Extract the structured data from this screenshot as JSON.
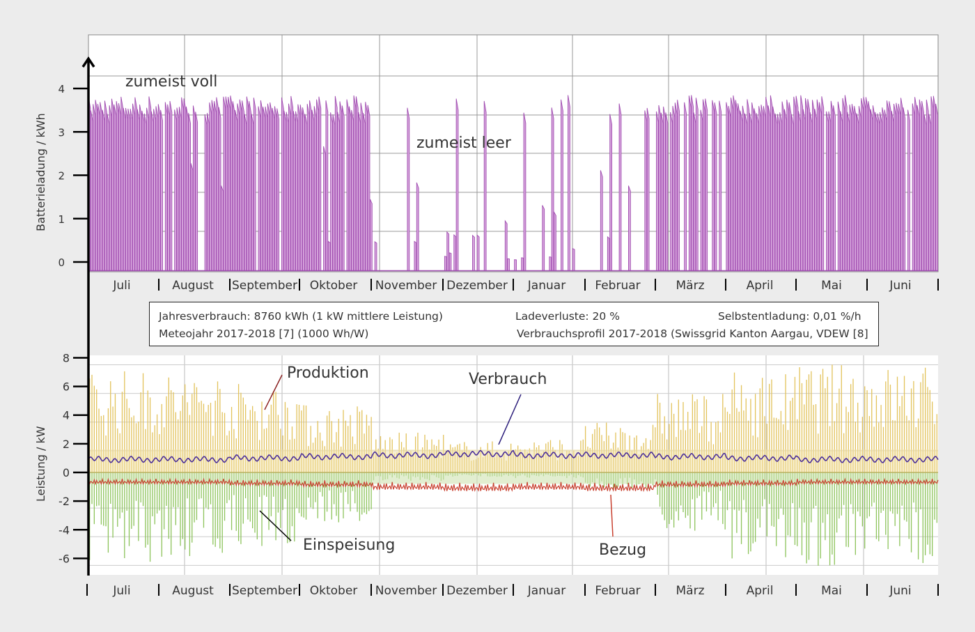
{
  "chart_data": [
    {
      "type": "line",
      "title": "",
      "ylabel": "Batterieladung / kWh",
      "ylim": [
        -0.2,
        4.5
      ],
      "yticks": [
        "0",
        "1",
        "2",
        "3",
        "4"
      ],
      "months": [
        "Juli",
        "August",
        "September",
        "Oktober",
        "November",
        "Dezember",
        "Januar",
        "Februar",
        "März",
        "April",
        "Mai",
        "Juni"
      ],
      "series": [
        {
          "name": "Batterieladung",
          "color": "#a04db0",
          "monthly_share_days_full": [
            0.97,
            0.88,
            0.92,
            0.85,
            0.08,
            0.06,
            0.12,
            0.22,
            0.65,
            0.95,
            0.97,
            0.96
          ],
          "monthly_typical_peak_kwh": [
            3.6,
            3.6,
            3.6,
            3.5,
            2.0,
            1.0,
            1.8,
            2.5,
            3.5,
            3.7,
            3.7,
            3.6
          ]
        }
      ],
      "annotations": [
        "zumeist voll",
        "zumeist leer"
      ]
    },
    {
      "type": "line",
      "ylabel": "Leistung / kW",
      "ylim": [
        -7,
        8
      ],
      "yticks": [
        "8",
        "6",
        "4",
        "2",
        "0",
        "-2",
        "-4",
        "-6"
      ],
      "months": [
        "Juli",
        "August",
        "September",
        "Oktober",
        "November",
        "Dezember",
        "Januar",
        "Februar",
        "März",
        "April",
        "Mai",
        "Juni"
      ],
      "series": [
        {
          "name": "Produktion",
          "color": "#e2c25a",
          "monthly_peak_kw": [
            7.2,
            7.0,
            6.3,
            4.8,
            2.8,
            2.2,
            2.4,
            3.5,
            5.6,
            7.0,
            7.6,
            7.5
          ]
        },
        {
          "name": "Verbrauch",
          "color": "#4b2f9a",
          "monthly_mean_kw": [
            0.9,
            0.9,
            1.0,
            1.1,
            1.2,
            1.3,
            1.2,
            1.2,
            1.1,
            1.0,
            0.9,
            0.9
          ]
        },
        {
          "name": "Einspeisung",
          "color": "#8cc35a",
          "monthly_min_kw": [
            -6.5,
            -6.0,
            -5.2,
            -3.6,
            -0.6,
            -0.3,
            -0.4,
            -1.2,
            -4.2,
            -6.0,
            -6.6,
            -6.5
          ]
        },
        {
          "name": "Bezug",
          "color": "#c8402f",
          "monthly_min_kw": [
            -0.8,
            -0.8,
            -0.9,
            -1.0,
            -1.2,
            -1.3,
            -1.2,
            -1.3,
            -1.0,
            -0.9,
            -0.8,
            -0.8
          ]
        }
      ],
      "annotations": [
        "Produktion",
        "Verbrauch",
        "Einspeisung",
        "Bezug"
      ]
    }
  ],
  "info": {
    "line1_left": "Jahresverbrauch: 8760 kWh (1 kW mittlere Leistung)",
    "line1_mid": "Ladeverluste: 20 %",
    "line1_right": "Selbstentladung: 0,01 %/h",
    "line2_left": "Meteojahr 2017-2018 [7] (1000 Wh/W)",
    "line2_right": "Verbrauchsprofil 2017-2018 (Swissgrid Kanton Aargau, VDEW [8]"
  }
}
